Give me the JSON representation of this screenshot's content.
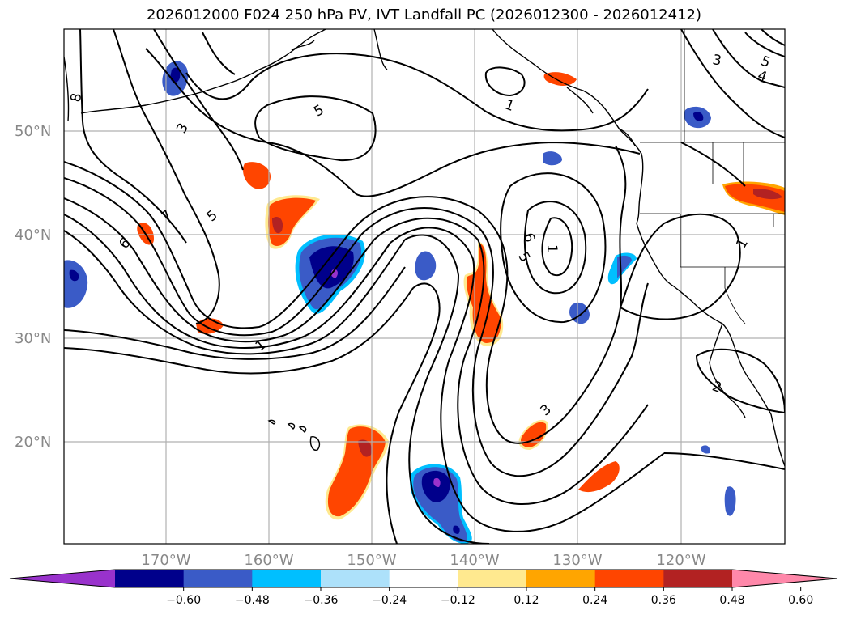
{
  "title": "2026012000 F024 250 hPa PV, IVT Landfall PC (2026012300 - 2026012412)",
  "lat_labels": [
    "50°N",
    "40°N",
    "30°N",
    "20°N"
  ],
  "lon_labels": [
    "170°W",
    "160°W",
    "150°W",
    "140°W",
    "130°W",
    "120°W"
  ],
  "colorbar": {
    "ticks": [
      "−0.60",
      "−0.48",
      "−0.36",
      "−0.24",
      "−0.12",
      "0.12",
      "0.24",
      "0.36",
      "0.48",
      "0.60"
    ],
    "colors": [
      "#9932CC",
      "#00008B",
      "#3A5BC7",
      "#00BFFF",
      "#ADE1FA",
      "#FFFFFF",
      "#FFE98F",
      "#FFA500",
      "#FF4500",
      "#B22222",
      "#FF88AA"
    ]
  },
  "contour_labels": [
    "8",
    "3",
    "7",
    "5",
    "6",
    "5",
    "1",
    "1",
    "6",
    "1",
    "5",
    "3",
    "5",
    "4",
    "1",
    "2",
    "3"
  ],
  "colors": {
    "coast": "#000000",
    "contour": "#000000",
    "grid": "#b0b0b0"
  }
}
